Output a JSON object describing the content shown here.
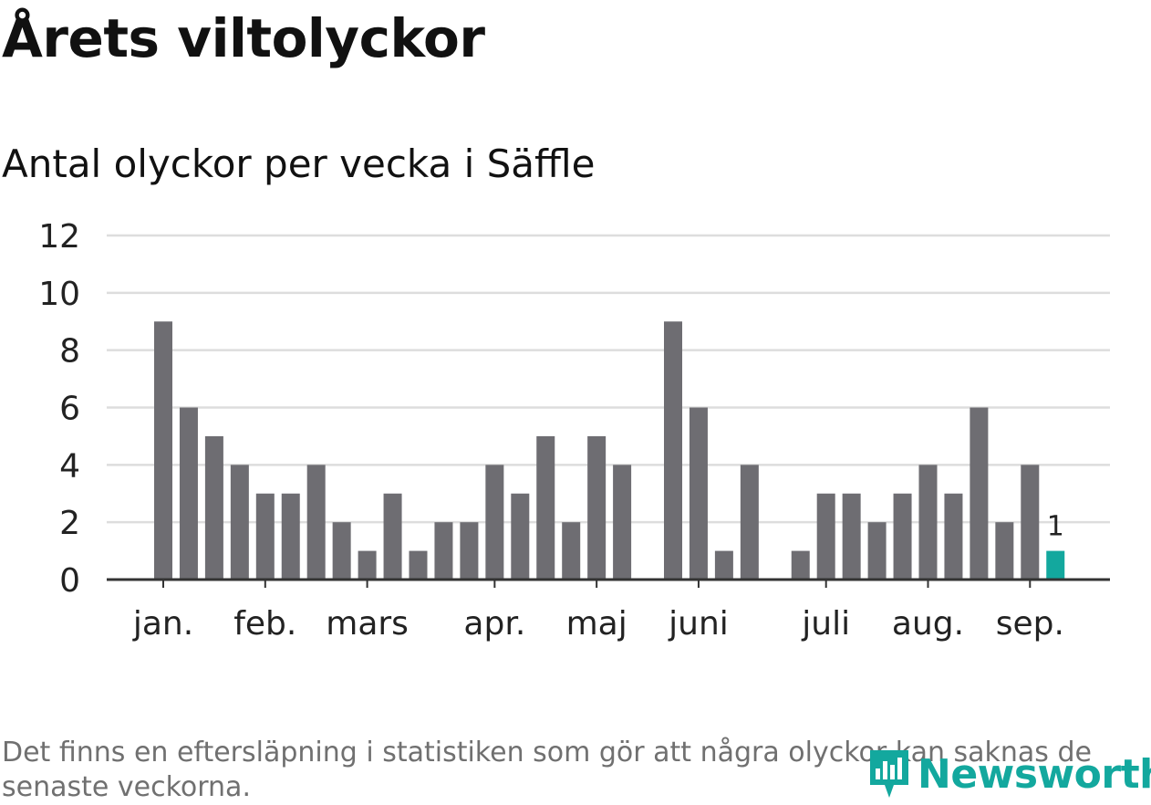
{
  "title": "Årets viltolyckor",
  "subtitle": "Antal olyckor per vecka i Säffle",
  "footnote": "Det finns en eftersläpning i statistiken som gör att några olyckor kan saknas de senaste veckorna.",
  "logo": {
    "text": "Newsworthy",
    "icon": "bar-chart-pin-icon",
    "color": "#13a89e"
  },
  "colors": {
    "bar": "#6e6d72",
    "highlight": "#13a89e",
    "grid": "#dddddd",
    "axis": "#333333"
  },
  "chart_data": {
    "type": "bar",
    "values": [
      9,
      6,
      5,
      4,
      3,
      3,
      4,
      2,
      1,
      3,
      1,
      2,
      2,
      4,
      3,
      5,
      2,
      5,
      4,
      0,
      9,
      6,
      1,
      4,
      0,
      1,
      3,
      3,
      2,
      3,
      4,
      3,
      6,
      2,
      4,
      1
    ],
    "x_month_labels": [
      {
        "label": "jan.",
        "week": 0
      },
      {
        "label": "feb.",
        "week": 4
      },
      {
        "label": "mars",
        "week": 8
      },
      {
        "label": "apr.",
        "week": 13
      },
      {
        "label": "maj",
        "week": 17
      },
      {
        "label": "juni",
        "week": 21
      },
      {
        "label": "juli",
        "week": 26
      },
      {
        "label": "aug.",
        "week": 30
      },
      {
        "label": "sep.",
        "week": 34
      }
    ],
    "ylim": [
      0,
      12
    ],
    "yticks": [
      0,
      2,
      4,
      6,
      8,
      10,
      12
    ],
    "highlight_index": 35,
    "highlight_label": "1",
    "grid": true
  }
}
